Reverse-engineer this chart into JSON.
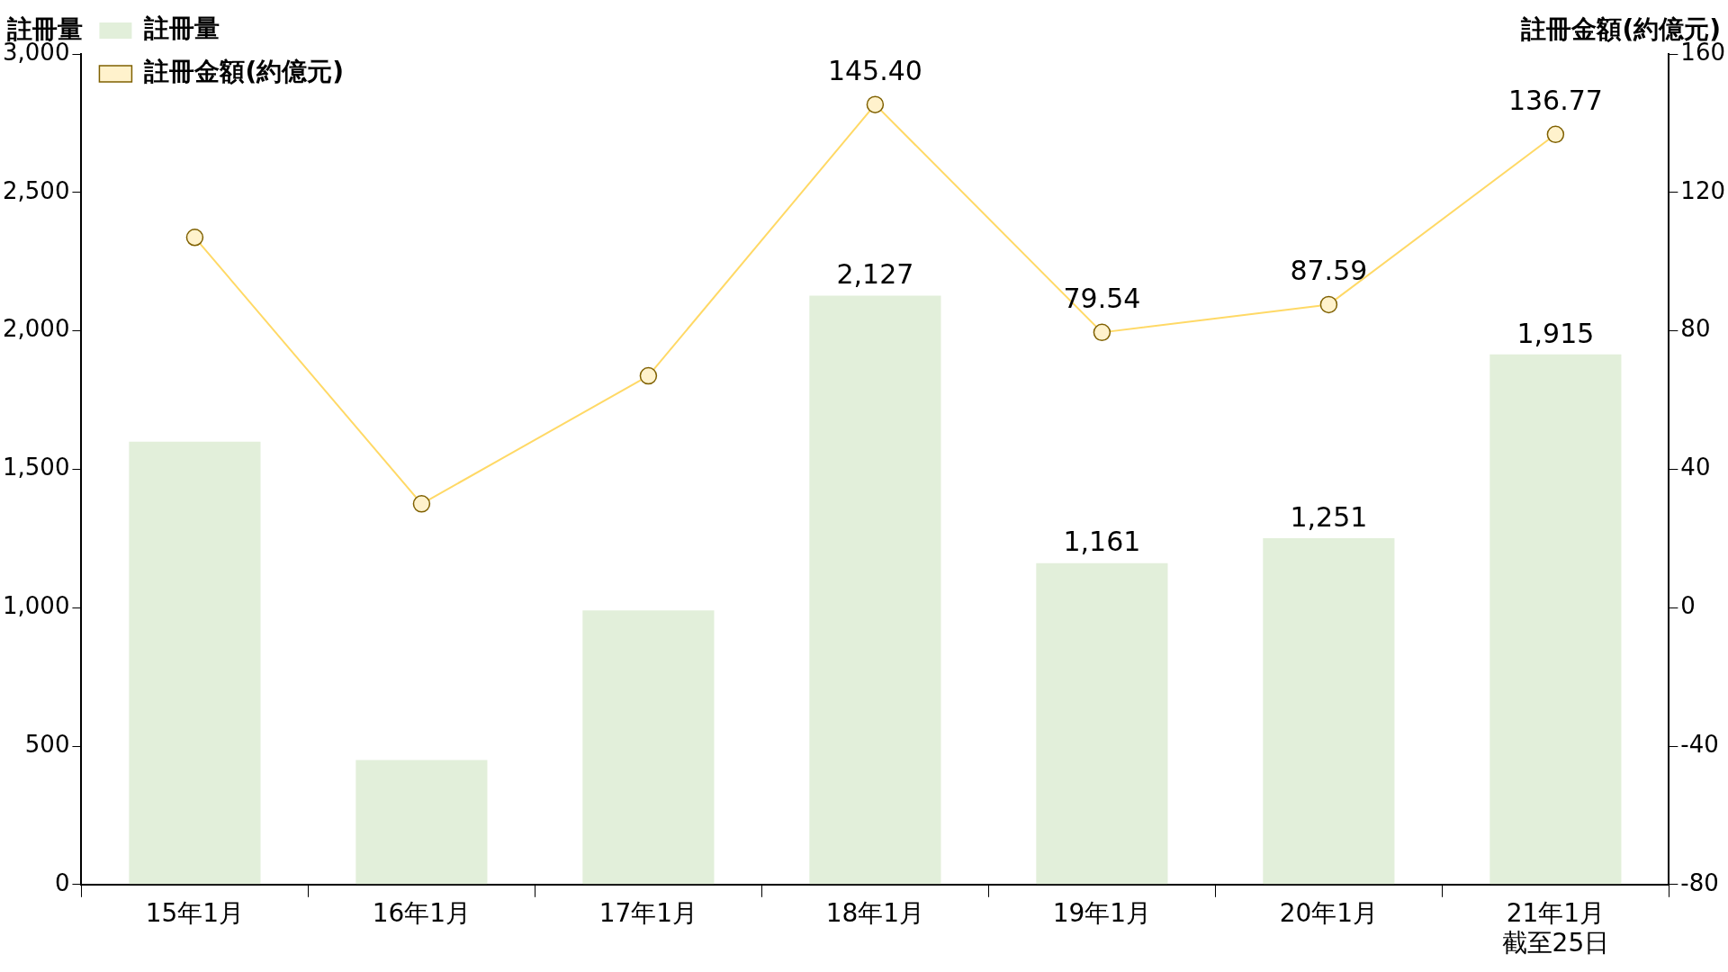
{
  "chart_data": {
    "type": "bar",
    "categories": [
      "15年1月",
      "16年1月",
      "17年1月",
      "18年1月",
      "19年1月",
      "20年1月",
      "21年1月截至25日"
    ],
    "series": [
      {
        "name": "註冊量",
        "color": "#e2efda",
        "values": [
          1600,
          450,
          990,
          2127,
          1161,
          1251,
          1915
        ],
        "value_labels": [
          null,
          null,
          null,
          "2,127",
          "1,161",
          "1,251",
          "1,915"
        ]
      },
      {
        "name": "註冊金額(約億元)",
        "type": "line",
        "axis": "y2",
        "color": "#ffd966",
        "values": [
          107,
          30,
          67,
          145.4,
          79.54,
          87.59,
          136.77
        ],
        "value_labels": [
          null,
          null,
          null,
          "145.40",
          "79.54",
          "87.59",
          "136.77"
        ]
      }
    ],
    "ylabel": "註冊量",
    "y2label": "註冊金額(約億元)",
    "ylim": [
      0,
      3000
    ],
    "yticks": [
      {
        "value": 0,
        "label": "0"
      },
      {
        "value": 500,
        "label": "500"
      },
      {
        "value": 1000,
        "label": "1,000"
      },
      {
        "value": 1500,
        "label": "1,500"
      },
      {
        "value": 2000,
        "label": "2,000"
      },
      {
        "value": 2500,
        "label": "2,500"
      },
      {
        "value": 3000,
        "label": "3,000"
      }
    ],
    "y2lim": [
      -80,
      160
    ],
    "y2ticks": [
      -80,
      -40,
      0,
      40,
      80,
      120,
      160
    ],
    "grid": false,
    "legend": "top left",
    "marker": "circle",
    "line_style": "solid"
  }
}
